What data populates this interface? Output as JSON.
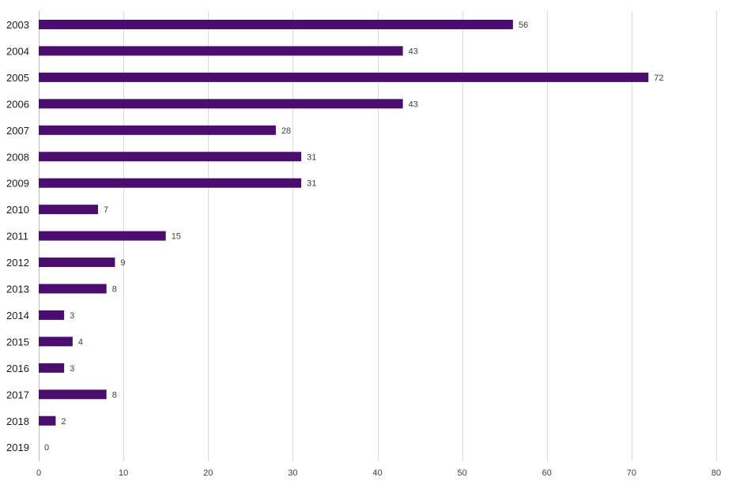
{
  "chart_data": {
    "type": "bar",
    "orientation": "horizontal",
    "categories": [
      "2003",
      "2004",
      "2005",
      "2006",
      "2007",
      "2008",
      "2009",
      "2010",
      "2011",
      "2012",
      "2013",
      "2014",
      "2015",
      "2016",
      "2017",
      "2018",
      "2019"
    ],
    "values": [
      56,
      43,
      72,
      43,
      28,
      31,
      31,
      7,
      15,
      9,
      8,
      3,
      4,
      3,
      8,
      2,
      0
    ],
    "data_labels": [
      "56",
      "43",
      "72",
      "43",
      "28",
      "31",
      "31",
      "7",
      "15",
      "9",
      "8",
      "3",
      "4",
      "3",
      "8",
      "2",
      "0"
    ],
    "title": "",
    "xlabel": "",
    "ylabel": "",
    "xlim": [
      0,
      80
    ],
    "x_ticks": [
      "0",
      "10",
      "20",
      "30",
      "40",
      "50",
      "60",
      "70",
      "80"
    ],
    "grid": true,
    "legend": "none",
    "bar_color": "#4b0e6e"
  }
}
